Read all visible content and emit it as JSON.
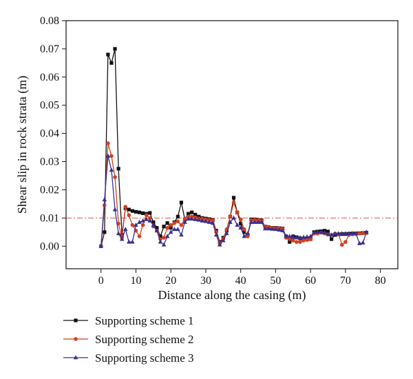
{
  "chart_data": {
    "type": "line",
    "xlabel": "Distance along the casing (m)",
    "ylabel": "Shear slip in rock strata (m)",
    "xlim": [
      -10,
      85
    ],
    "ylim": [
      -0.008,
      0.08
    ],
    "xticks": [
      0,
      10,
      20,
      30,
      40,
      50,
      60,
      70,
      80
    ],
    "yticks": [
      0.0,
      0.01,
      0.02,
      0.03,
      0.04,
      0.05,
      0.06,
      0.07,
      0.08
    ],
    "xtick_labels": [
      "0",
      "10",
      "20",
      "30",
      "40",
      "50",
      "60",
      "70",
      "80"
    ],
    "ytick_labels": [
      "0.00",
      "0.01",
      "0.02",
      "0.03",
      "0.04",
      "0.05",
      "0.06",
      "0.07",
      "0.08"
    ],
    "reference_line": {
      "y": 0.01,
      "style": "dash-dot",
      "color": "#d9534f"
    },
    "legend_position": "bottom-left, below plot",
    "series": [
      {
        "name": "Supporting scheme 1",
        "color": "#111111",
        "marker": "square",
        "x": [
          0,
          1,
          2,
          3,
          4,
          5,
          6,
          7,
          8,
          9,
          10,
          11,
          12,
          13,
          14,
          15,
          16,
          17,
          18,
          19,
          20,
          21,
          22,
          23,
          24,
          25,
          26,
          27,
          28,
          29,
          30,
          31,
          32,
          33,
          34,
          35,
          36,
          37,
          38,
          39,
          40,
          41,
          42,
          43,
          44,
          45,
          46,
          47,
          48,
          49,
          50,
          51,
          52,
          53,
          54,
          55,
          56,
          57,
          58,
          59,
          60,
          61,
          62,
          63,
          64,
          65,
          66,
          67,
          68,
          69,
          70,
          71,
          72,
          73,
          74,
          75,
          76
        ],
        "y": [
          0.0,
          0.005,
          0.068,
          0.065,
          0.07,
          0.0275,
          0.004,
          0.0135,
          0.013,
          0.0125,
          0.0122,
          0.012,
          0.0117,
          0.0115,
          0.0118,
          0.0085,
          0.0065,
          0.0035,
          0.007,
          0.0082,
          0.0065,
          0.0085,
          0.0105,
          0.0155,
          0.0095,
          0.0115,
          0.012,
          0.0112,
          0.0105,
          0.01,
          0.0098,
          0.0096,
          0.0092,
          0.0055,
          0.0015,
          0.003,
          0.0055,
          0.0105,
          0.0172,
          0.012,
          0.008,
          0.005,
          0.004,
          0.0095,
          0.0095,
          0.0093,
          0.0092,
          0.007,
          0.0068,
          0.0065,
          0.0065,
          0.0064,
          0.0063,
          0.0035,
          0.0015,
          0.0035,
          0.0032,
          0.0028,
          0.0026,
          0.0025,
          0.0025,
          0.005,
          0.0052,
          0.0053,
          0.0055,
          0.0052,
          0.0025,
          0.004,
          0.0042,
          0.0043,
          0.0043,
          0.0044,
          0.0045,
          0.0045,
          0.0046,
          0.0047,
          0.0048
        ]
      },
      {
        "name": "Supporting scheme 2",
        "color": "#d4401f",
        "marker": "circle",
        "x": [
          0,
          1,
          2,
          3,
          4,
          5,
          6,
          7,
          8,
          9,
          10,
          11,
          12,
          13,
          14,
          15,
          16,
          17,
          18,
          19,
          20,
          21,
          22,
          23,
          24,
          25,
          26,
          27,
          28,
          29,
          30,
          31,
          32,
          33,
          34,
          35,
          36,
          37,
          38,
          39,
          40,
          41,
          42,
          43,
          44,
          45,
          46,
          47,
          48,
          49,
          50,
          51,
          52,
          53,
          54,
          55,
          56,
          57,
          58,
          59,
          60,
          61,
          62,
          63,
          64,
          65,
          66,
          67,
          68,
          69,
          70,
          71,
          72,
          73,
          74,
          75,
          76
        ],
        "y": [
          0.0,
          0.0145,
          0.0365,
          0.032,
          0.0245,
          0.008,
          0.003,
          0.014,
          0.011,
          0.0075,
          0.0055,
          0.0035,
          0.0075,
          0.011,
          0.01,
          0.007,
          0.0055,
          0.0025,
          0.003,
          0.0065,
          0.0075,
          0.0082,
          0.0088,
          0.0075,
          0.0098,
          0.0105,
          0.0105,
          0.0102,
          0.0098,
          0.0097,
          0.0095,
          0.0093,
          0.009,
          0.005,
          0.001,
          0.0025,
          0.006,
          0.0105,
          0.0155,
          0.012,
          0.0095,
          0.006,
          0.0035,
          0.0092,
          0.0093,
          0.0092,
          0.009,
          0.007,
          0.0068,
          0.0065,
          0.0064,
          0.0063,
          0.0062,
          0.003,
          0.0025,
          0.002,
          0.0015,
          0.0015,
          0.002,
          0.0022,
          0.0025,
          0.0045,
          0.0045,
          0.0048,
          0.0045,
          0.0042,
          0.004,
          0.0045,
          0.0043,
          0.0005,
          0.0015,
          0.004,
          0.0042,
          0.0043,
          0.0045,
          0.0046,
          0.0047
        ]
      },
      {
        "name": "Supporting scheme 3",
        "color": "#3a2f8f",
        "marker": "triangle",
        "x": [
          0,
          1,
          2,
          3,
          4,
          5,
          6,
          7,
          8,
          9,
          10,
          11,
          12,
          13,
          14,
          15,
          16,
          17,
          18,
          19,
          20,
          21,
          22,
          23,
          24,
          25,
          26,
          27,
          28,
          29,
          30,
          31,
          32,
          33,
          34,
          35,
          36,
          37,
          38,
          39,
          40,
          41,
          42,
          43,
          44,
          45,
          46,
          47,
          48,
          49,
          50,
          51,
          52,
          53,
          54,
          55,
          56,
          57,
          58,
          59,
          60,
          61,
          62,
          63,
          64,
          65,
          66,
          67,
          68,
          69,
          70,
          71,
          72,
          73,
          74,
          75,
          76
        ],
        "y": [
          0.0,
          0.0165,
          0.032,
          0.027,
          0.013,
          0.0045,
          0.0025,
          0.006,
          0.0015,
          0.0015,
          0.0075,
          0.0085,
          0.009,
          0.0095,
          0.009,
          0.0075,
          0.0055,
          0.0015,
          0.0005,
          0.0035,
          0.005,
          0.006,
          0.006,
          0.004,
          0.0085,
          0.0097,
          0.0097,
          0.0095,
          0.0093,
          0.009,
          0.0088,
          0.0085,
          0.0082,
          0.004,
          0.0005,
          0.002,
          0.0045,
          0.0085,
          0.01,
          0.0075,
          0.0065,
          0.0035,
          0.0045,
          0.0085,
          0.0085,
          0.0085,
          0.0085,
          0.0062,
          0.0062,
          0.0061,
          0.006,
          0.0058,
          0.0055,
          0.0035,
          0.0035,
          0.0032,
          0.003,
          0.003,
          0.0032,
          0.0033,
          0.0035,
          0.0048,
          0.005,
          0.005,
          0.0048,
          0.0042,
          0.004,
          0.0044,
          0.0045,
          0.0045,
          0.0045,
          0.0045,
          0.0045,
          0.0045,
          0.001,
          0.0012,
          0.005
        ]
      }
    ]
  }
}
